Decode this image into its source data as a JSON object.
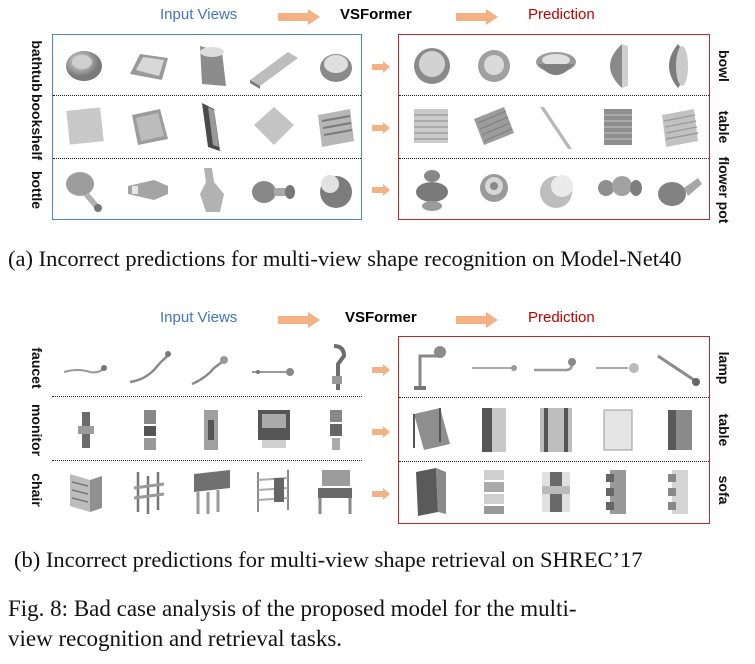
{
  "figure": {
    "top": {
      "header_input": "Input Views",
      "header_model": "VSFormer",
      "header_pred": "Prediction",
      "rows": [
        {
          "left": "bathtub",
          "right": "bowl"
        },
        {
          "left": "bookshelf",
          "right": "table"
        },
        {
          "left": "bottle",
          "right": "flower pot"
        }
      ],
      "caption": "(a) Incorrect predictions for multi-view shape recognition on Model-Net40"
    },
    "bottom": {
      "header_input": "Input Views",
      "header_model": "VSFormer",
      "header_pred": "Prediction",
      "rows": [
        {
          "left": "faucet",
          "right": "lamp"
        },
        {
          "left": "monitor",
          "right": "table"
        },
        {
          "left": "chair",
          "right": "sofa"
        }
      ],
      "caption": "(b) Incorrect predictions for multi-view shape retrieval on SHREC’17"
    },
    "caption_line1": "Fig. 8: Bad case analysis of the proposed model for the multi-",
    "caption_line2": "view recognition and retrieval tasks."
  },
  "colors": {
    "input": "#4472c4",
    "prediction": "#c00000",
    "arrow": "#f4b183",
    "blue_border": "#4a86c8",
    "red_border": "#c0282d"
  }
}
